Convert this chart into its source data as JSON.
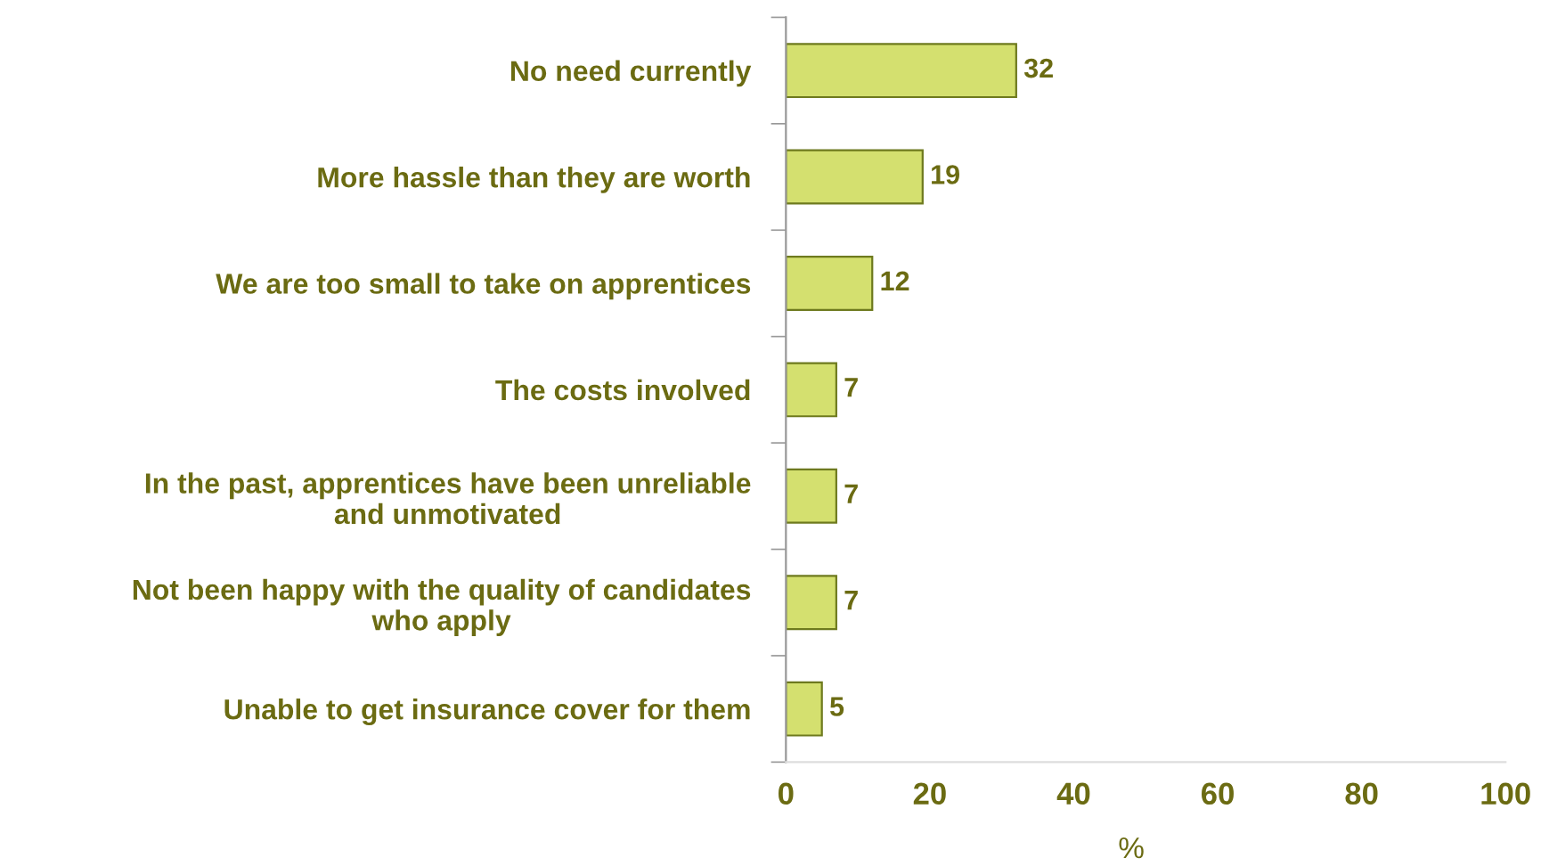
{
  "chart_data": {
    "type": "bar",
    "orientation": "horizontal",
    "categories": [
      "No need currently",
      "More hassle than they are worth",
      "We are too small to take on apprentices",
      "The costs involved",
      "In the past, apprentices have been unreliable\nand unmotivated",
      "Not been happy with the quality of candidates\nwho apply",
      "Unable to get insurance cover for them"
    ],
    "values": [
      32,
      19,
      12,
      7,
      7,
      7,
      5
    ],
    "color": "#d4e06f",
    "xlim": [
      0,
      100
    ],
    "xticks": [
      0,
      20,
      40,
      60,
      80,
      100
    ],
    "xlabel": "%",
    "data_labels": true,
    "grid": false,
    "legend": false
  }
}
